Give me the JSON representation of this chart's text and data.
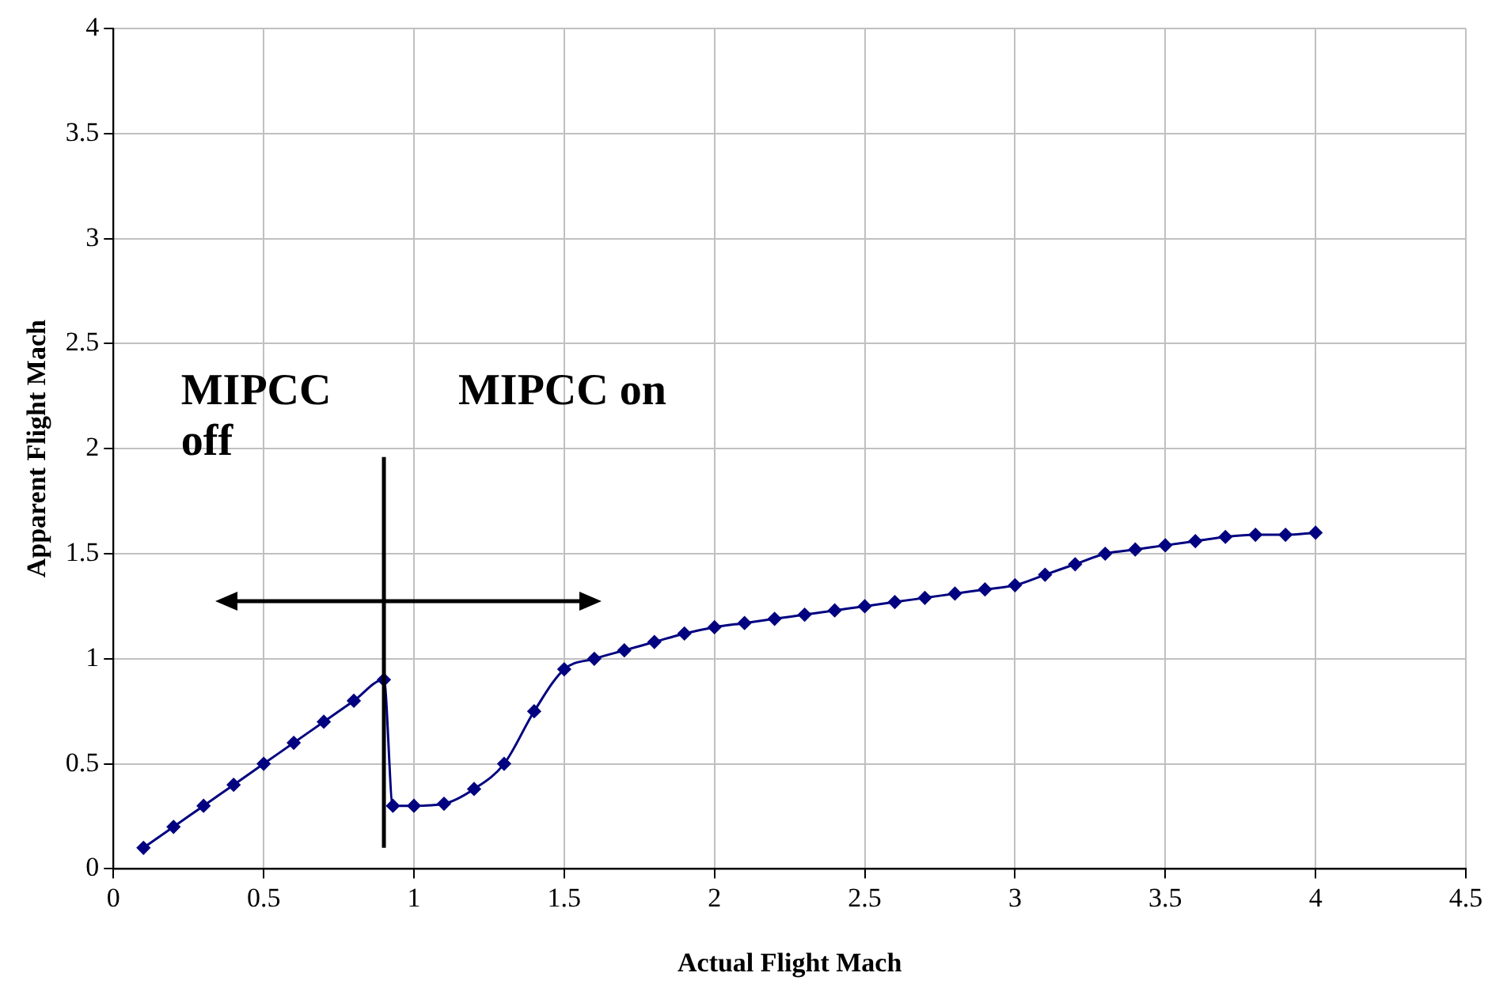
{
  "chart_data": {
    "type": "line",
    "xlabel": "Actual Flight Mach",
    "ylabel": "Apparent Flight Mach",
    "x": [
      0.1,
      0.2,
      0.3,
      0.4,
      0.5,
      0.6,
      0.7,
      0.8,
      0.9,
      0.93,
      1.0,
      1.1,
      1.2,
      1.3,
      1.4,
      1.5,
      1.6,
      1.7,
      1.8,
      1.9,
      2.0,
      2.1,
      2.2,
      2.3,
      2.4,
      2.5,
      2.6,
      2.7,
      2.8,
      2.9,
      3.0,
      3.1,
      3.2,
      3.3,
      3.4,
      3.5,
      3.6,
      3.7,
      3.8,
      3.9,
      4.0
    ],
    "series": [
      {
        "color": "#000080",
        "values": [
          0.1,
          0.2,
          0.3,
          0.4,
          0.5,
          0.6,
          0.7,
          0.8,
          0.9,
          0.3,
          0.3,
          0.31,
          0.38,
          0.5,
          0.75,
          0.95,
          1.0,
          1.04,
          1.08,
          1.12,
          1.15,
          1.17,
          1.19,
          1.21,
          1.23,
          1.25,
          1.27,
          1.29,
          1.31,
          1.33,
          1.35,
          1.4,
          1.45,
          1.5,
          1.52,
          1.54,
          1.56,
          1.58,
          1.59,
          1.59,
          1.6
        ]
      }
    ],
    "xlim": [
      0,
      4.5
    ],
    "xticks": [
      0,
      0.5,
      1,
      1.5,
      2,
      2.5,
      3,
      3.5,
      4,
      4.5
    ],
    "ylim": [
      0,
      4
    ],
    "yticks": [
      0,
      0.5,
      1,
      1.5,
      2,
      2.5,
      3,
      3.5,
      4
    ],
    "ref_lines": [
      {
        "axis": "x",
        "value": 0.9,
        "color": "#000000"
      }
    ],
    "annotations": [
      "MIPCC off",
      "MIPCC on"
    ],
    "grid": true,
    "legend": false,
    "marker": "diamond",
    "line_style": "solid"
  }
}
